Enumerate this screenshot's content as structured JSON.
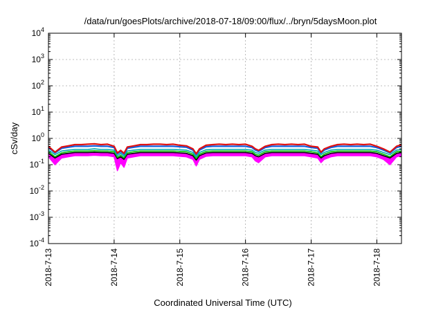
{
  "chart_data": {
    "type": "area",
    "title": "/data/run/goesPlots/archive/2018-07-18/09:00/flux/../bryn/5daysMoon.plot",
    "xlabel": "Coordinated Universal Time (UTC)",
    "ylabel": "cSv/day",
    "yscale": "log",
    "ylim": [
      0.0001,
      10000
    ],
    "xlim": [
      "2018-07-13 00:00",
      "2018-07-18 09:00"
    ],
    "grid": true,
    "y_ticks": [
      {
        "value": 0.0001,
        "base": "10",
        "exp": "-4"
      },
      {
        "value": 0.001,
        "base": "10",
        "exp": "-3"
      },
      {
        "value": 0.01,
        "base": "10",
        "exp": "-2"
      },
      {
        "value": 0.1,
        "base": "10",
        "exp": "-1"
      },
      {
        "value": 1,
        "base": "10",
        "exp": "0"
      },
      {
        "value": 10,
        "base": "10",
        "exp": "1"
      },
      {
        "value": 100,
        "base": "10",
        "exp": "2"
      },
      {
        "value": 1000,
        "base": "10",
        "exp": "3"
      },
      {
        "value": 10000,
        "base": "10",
        "exp": "4"
      }
    ],
    "x_ticks": [
      "2018-7-13",
      "2018-7-14",
      "2018-7-15",
      "2018-7-16",
      "2018-7-17",
      "2018-7-18"
    ],
    "x": [
      0,
      0.1,
      0.2,
      0.3,
      0.4,
      0.5,
      0.6,
      0.7,
      0.8,
      0.9,
      1.0,
      1.05,
      1.1,
      1.15,
      1.2,
      1.3,
      1.4,
      1.5,
      1.6,
      1.7,
      1.8,
      1.9,
      2.0,
      2.1,
      2.2,
      2.25,
      2.3,
      2.4,
      2.5,
      2.6,
      2.7,
      2.8,
      2.9,
      3.0,
      3.1,
      3.15,
      3.2,
      3.3,
      3.4,
      3.5,
      3.6,
      3.7,
      3.8,
      3.9,
      4.0,
      4.1,
      4.15,
      4.2,
      4.3,
      4.4,
      4.5,
      4.6,
      4.7,
      4.8,
      4.9,
      5.0,
      5.1,
      5.2,
      5.3,
      5.375
    ],
    "series": [
      {
        "color": "#ff00ff",
        "values": [
          0.2,
          0.1,
          0.18,
          0.2,
          0.22,
          0.22,
          0.22,
          0.23,
          0.22,
          0.22,
          0.2,
          0.06,
          0.12,
          0.08,
          0.18,
          0.2,
          0.22,
          0.22,
          0.22,
          0.22,
          0.22,
          0.22,
          0.21,
          0.2,
          0.16,
          0.09,
          0.16,
          0.21,
          0.22,
          0.22,
          0.22,
          0.22,
          0.22,
          0.22,
          0.2,
          0.14,
          0.12,
          0.2,
          0.22,
          0.22,
          0.22,
          0.22,
          0.22,
          0.22,
          0.2,
          0.18,
          0.12,
          0.16,
          0.2,
          0.22,
          0.22,
          0.22,
          0.22,
          0.22,
          0.22,
          0.2,
          0.16,
          0.1,
          0.2,
          0.22
        ]
      },
      {
        "color": "#000000",
        "values": [
          0.27,
          0.18,
          0.25,
          0.27,
          0.29,
          0.29,
          0.29,
          0.3,
          0.29,
          0.29,
          0.27,
          0.17,
          0.2,
          0.16,
          0.25,
          0.27,
          0.29,
          0.29,
          0.29,
          0.29,
          0.29,
          0.29,
          0.28,
          0.27,
          0.22,
          0.15,
          0.22,
          0.28,
          0.29,
          0.29,
          0.29,
          0.29,
          0.29,
          0.29,
          0.27,
          0.22,
          0.2,
          0.27,
          0.29,
          0.29,
          0.29,
          0.29,
          0.29,
          0.29,
          0.27,
          0.25,
          0.18,
          0.22,
          0.27,
          0.29,
          0.29,
          0.29,
          0.29,
          0.29,
          0.29,
          0.27,
          0.22,
          0.18,
          0.27,
          0.29
        ]
      },
      {
        "color": "#00c000",
        "values": [
          0.31,
          0.2,
          0.28,
          0.31,
          0.33,
          0.33,
          0.33,
          0.34,
          0.33,
          0.33,
          0.31,
          0.19,
          0.23,
          0.18,
          0.28,
          0.31,
          0.33,
          0.33,
          0.33,
          0.33,
          0.33,
          0.33,
          0.32,
          0.31,
          0.25,
          0.17,
          0.25,
          0.32,
          0.33,
          0.33,
          0.33,
          0.33,
          0.33,
          0.33,
          0.31,
          0.25,
          0.23,
          0.31,
          0.33,
          0.33,
          0.33,
          0.33,
          0.33,
          0.33,
          0.31,
          0.28,
          0.2,
          0.25,
          0.31,
          0.33,
          0.33,
          0.33,
          0.33,
          0.33,
          0.33,
          0.31,
          0.25,
          0.2,
          0.31,
          0.33
        ]
      },
      {
        "color": "#00aaaa",
        "values": [
          0.36,
          0.24,
          0.33,
          0.36,
          0.38,
          0.38,
          0.38,
          0.4,
          0.38,
          0.38,
          0.36,
          0.22,
          0.27,
          0.21,
          0.33,
          0.36,
          0.38,
          0.38,
          0.38,
          0.38,
          0.38,
          0.38,
          0.37,
          0.36,
          0.29,
          0.2,
          0.29,
          0.37,
          0.38,
          0.38,
          0.38,
          0.38,
          0.38,
          0.38,
          0.36,
          0.29,
          0.27,
          0.36,
          0.38,
          0.38,
          0.38,
          0.38,
          0.38,
          0.38,
          0.36,
          0.33,
          0.24,
          0.29,
          0.36,
          0.38,
          0.38,
          0.38,
          0.38,
          0.38,
          0.38,
          0.36,
          0.29,
          0.24,
          0.36,
          0.38
        ]
      },
      {
        "color": "#1060e0",
        "values": [
          0.45,
          0.28,
          0.42,
          0.46,
          0.5,
          0.5,
          0.5,
          0.52,
          0.5,
          0.5,
          0.45,
          0.26,
          0.32,
          0.25,
          0.42,
          0.46,
          0.5,
          0.5,
          0.5,
          0.5,
          0.5,
          0.5,
          0.48,
          0.46,
          0.36,
          0.24,
          0.36,
          0.48,
          0.5,
          0.5,
          0.5,
          0.5,
          0.5,
          0.5,
          0.45,
          0.36,
          0.32,
          0.45,
          0.5,
          0.5,
          0.5,
          0.5,
          0.5,
          0.5,
          0.45,
          0.42,
          0.28,
          0.36,
          0.45,
          0.5,
          0.5,
          0.5,
          0.5,
          0.5,
          0.5,
          0.45,
          0.36,
          0.28,
          0.45,
          0.5
        ]
      },
      {
        "color": "#e01010",
        "values": [
          0.5,
          0.3,
          0.47,
          0.52,
          0.58,
          0.58,
          0.6,
          0.62,
          0.58,
          0.6,
          0.5,
          0.28,
          0.35,
          0.27,
          0.47,
          0.52,
          0.58,
          0.58,
          0.6,
          0.6,
          0.58,
          0.6,
          0.55,
          0.52,
          0.4,
          0.26,
          0.4,
          0.55,
          0.58,
          0.6,
          0.58,
          0.6,
          0.58,
          0.6,
          0.5,
          0.4,
          0.35,
          0.5,
          0.58,
          0.6,
          0.58,
          0.6,
          0.58,
          0.6,
          0.5,
          0.47,
          0.3,
          0.4,
          0.5,
          0.58,
          0.6,
          0.58,
          0.6,
          0.58,
          0.6,
          0.5,
          0.4,
          0.3,
          0.5,
          0.58
        ]
      }
    ]
  }
}
